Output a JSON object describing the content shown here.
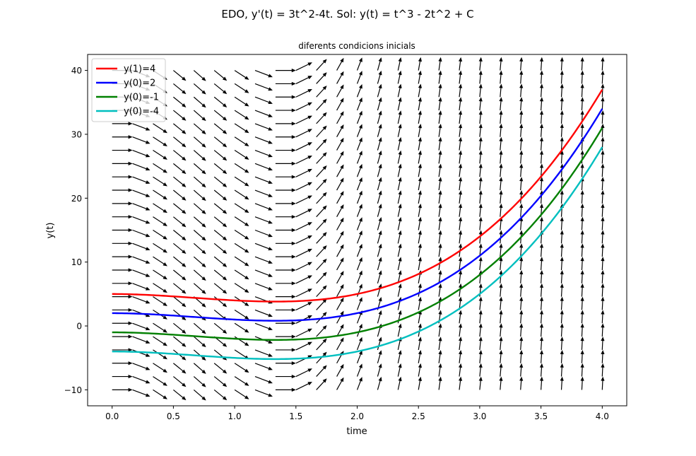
{
  "figure": {
    "suptitle": "EDO, y'(t) = 3t^2-4t. Sol: y(t) = t^3 - 2t^2 + C"
  },
  "chart_data": {
    "type": "line",
    "title": "diferents condicions inicials",
    "xlabel": "time",
    "ylabel": "y(t)",
    "xlim": [
      -0.2,
      4.2
    ],
    "ylim": [
      -12.5,
      42.5
    ],
    "xticks": [
      0.0,
      0.5,
      1.0,
      1.5,
      2.0,
      2.5,
      3.0,
      3.5,
      4.0
    ],
    "xtick_labels": [
      "0.0",
      "0.5",
      "1.0",
      "1.5",
      "2.0",
      "2.5",
      "3.0",
      "3.5",
      "4.0"
    ],
    "yticks": [
      -10,
      0,
      10,
      20,
      30,
      40
    ],
    "ytick_labels": [
      "−10",
      "0",
      "10",
      "20",
      "30",
      "40"
    ],
    "grid": false,
    "legend_position": "top-left",
    "ode": "y'(t) = 3t^2 - 4t",
    "solution": "y(t) = t^3 - 2t^2 + C",
    "direction_field": {
      "t_range": [
        0,
        4
      ],
      "t_count": 25,
      "y_range": [
        -10,
        40
      ],
      "y_count": 25,
      "color": "#000000"
    },
    "series": [
      {
        "name": "y(1)=4",
        "C": 5,
        "color": "#ff0000"
      },
      {
        "name": "y(0)=2",
        "C": 2,
        "color": "#0000ff"
      },
      {
        "name": "y(0)=-1",
        "C": -1,
        "color": "#008000"
      },
      {
        "name": "y(0)=-4",
        "C": -4,
        "color": "#00bfbf"
      }
    ]
  }
}
